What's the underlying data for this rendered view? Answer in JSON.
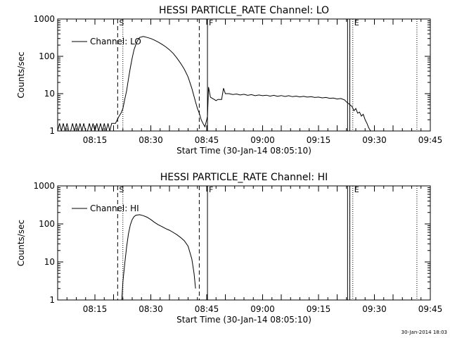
{
  "chart_data": [
    {
      "type": "line",
      "title": "HESSI PARTICLE_RATE Channel: LO",
      "xlabel": "Start Time (30-Jan-14 08:05:10)",
      "ylabel": "Counts/sec",
      "y_scale": "log",
      "ylim": [
        1,
        1000
      ],
      "xlim_minutes": [
        0,
        100
      ],
      "xticks": [
        {
          "min": 10,
          "label": "08:15"
        },
        {
          "min": 25,
          "label": "08:30"
        },
        {
          "min": 40,
          "label": "08:45"
        },
        {
          "min": 55,
          "label": "09:00"
        },
        {
          "min": 70,
          "label": "09:15"
        },
        {
          "min": 85,
          "label": "09:30"
        },
        {
          "min": 100,
          "label": "09:45"
        }
      ],
      "yticks": [
        {
          "value": 1,
          "label": "1"
        },
        {
          "value": 10,
          "label": "10"
        },
        {
          "value": 100,
          "label": "100"
        },
        {
          "value": 1000,
          "label": "1000"
        }
      ],
      "legend": {
        "label": "Channel: LO",
        "placement": "top-left"
      },
      "markers": [
        {
          "min": 16.1,
          "style": "dashed",
          "label": "S"
        },
        {
          "min": 17.5,
          "style": "dotted",
          "label": ""
        },
        {
          "min": 38.0,
          "style": "dashed",
          "label": ""
        },
        {
          "min": 40.2,
          "style": "solid",
          "label": "F"
        },
        {
          "min": 77.8,
          "style": "solid",
          "label": ""
        },
        {
          "min": 78.4,
          "style": "solid",
          "label": ""
        },
        {
          "min": 79.2,
          "style": "dotted",
          "label": "E"
        },
        {
          "min": 96.4,
          "style": "dotted",
          "label": ""
        }
      ],
      "series": [
        {
          "name": "Channel: LO",
          "points": [
            [
              0,
              1
            ],
            [
              0.5,
              1.6
            ],
            [
              1,
              1
            ],
            [
              1.5,
              1.6
            ],
            [
              2,
              1
            ],
            [
              2.5,
              1.6
            ],
            [
              3,
              1
            ],
            [
              3.5,
              1
            ],
            [
              4,
              1.6
            ],
            [
              4.5,
              1
            ],
            [
              5,
              1.6
            ],
            [
              5.5,
              1
            ],
            [
              6,
              1.6
            ],
            [
              6.5,
              1
            ],
            [
              7,
              1.6
            ],
            [
              7.5,
              1
            ],
            [
              8,
              1
            ],
            [
              8.5,
              1.6
            ],
            [
              9,
              1
            ],
            [
              9.5,
              1.6
            ],
            [
              10,
              1
            ],
            [
              10.5,
              1.6
            ],
            [
              11,
              1
            ],
            [
              11.5,
              1.6
            ],
            [
              12,
              1
            ],
            [
              12.5,
              1.6
            ],
            [
              13,
              1
            ],
            [
              13.5,
              1.6
            ],
            [
              14,
              1
            ],
            [
              14.5,
              1.6
            ],
            [
              15,
              1.6
            ],
            [
              15.5,
              1.6
            ],
            [
              16,
              2
            ],
            [
              16.5,
              2.5
            ],
            [
              17,
              3
            ],
            [
              17.5,
              4
            ],
            [
              18,
              7
            ],
            [
              18.5,
              12
            ],
            [
              19,
              25
            ],
            [
              19.5,
              50
            ],
            [
              20,
              90
            ],
            [
              20.5,
              150
            ],
            [
              21,
              210
            ],
            [
              21.5,
              270
            ],
            [
              22,
              320
            ],
            [
              23,
              340
            ],
            [
              24,
              320
            ],
            [
              25,
              300
            ],
            [
              26,
              270
            ],
            [
              27,
              240
            ],
            [
              28,
              210
            ],
            [
              29,
              180
            ],
            [
              30,
              150
            ],
            [
              31,
              120
            ],
            [
              32,
              90
            ],
            [
              33,
              65
            ],
            [
              34,
              45
            ],
            [
              35,
              28
            ],
            [
              36,
              14
            ],
            [
              37,
              6
            ],
            [
              37.5,
              4
            ],
            [
              38,
              3
            ],
            [
              38.5,
              2
            ],
            [
              39,
              1.6
            ],
            [
              39.5,
              1.3
            ],
            [
              40,
              2
            ],
            [
              40.2,
              2.5
            ],
            [
              40.5,
              15
            ],
            [
              41,
              8
            ],
            [
              42,
              7
            ],
            [
              42.5,
              6.5
            ],
            [
              43,
              7
            ],
            [
              44,
              7
            ],
            [
              44.5,
              14
            ],
            [
              45,
              10
            ],
            [
              46,
              10
            ],
            [
              47,
              9.5
            ],
            [
              48,
              9.8
            ],
            [
              49,
              9.2
            ],
            [
              50,
              9.6
            ],
            [
              51,
              9
            ],
            [
              52,
              9.4
            ],
            [
              53,
              8.8
            ],
            [
              54,
              9.2
            ],
            [
              55,
              8.8
            ],
            [
              56,
              9.1
            ],
            [
              57,
              8.6
            ],
            [
              58,
              9
            ],
            [
              59,
              8.5
            ],
            [
              60,
              8.9
            ],
            [
              61,
              8.4
            ],
            [
              62,
              8.8
            ],
            [
              63,
              8.3
            ],
            [
              64,
              8.6
            ],
            [
              65,
              8.2
            ],
            [
              66,
              8.5
            ],
            [
              67,
              8.1
            ],
            [
              68,
              8.3
            ],
            [
              69,
              7.9
            ],
            [
              70,
              8.1
            ],
            [
              71,
              7.7
            ],
            [
              72,
              7.9
            ],
            [
              73,
              7.5
            ],
            [
              74,
              7.6
            ],
            [
              75,
              7.2
            ],
            [
              76,
              7.4
            ],
            [
              77,
              6.8
            ],
            [
              77.5,
              6
            ],
            [
              78.5,
              5
            ],
            [
              79,
              4.5
            ],
            [
              79.5,
              3.5
            ],
            [
              80,
              4
            ],
            [
              80.5,
              3
            ],
            [
              81,
              3.2
            ],
            [
              81.5,
              2.5
            ],
            [
              82,
              2.8
            ],
            [
              82.5,
              2
            ],
            [
              83,
              1.6
            ],
            [
              83.5,
              1.2
            ],
            [
              84,
              1
            ]
          ]
        }
      ]
    },
    {
      "type": "line",
      "title": "HESSI PARTICLE_RATE Channel: HI",
      "xlabel": "Start Time (30-Jan-14 08:05:10)",
      "ylabel": "Counts/sec",
      "y_scale": "log",
      "ylim": [
        1,
        1000
      ],
      "xlim_minutes": [
        0,
        100
      ],
      "xticks": [
        {
          "min": 10,
          "label": "08:15"
        },
        {
          "min": 25,
          "label": "08:30"
        },
        {
          "min": 40,
          "label": "08:45"
        },
        {
          "min": 55,
          "label": "09:00"
        },
        {
          "min": 70,
          "label": "09:15"
        },
        {
          "min": 85,
          "label": "09:30"
        },
        {
          "min": 100,
          "label": "09:45"
        }
      ],
      "yticks": [
        {
          "value": 1,
          "label": "1"
        },
        {
          "value": 10,
          "label": "10"
        },
        {
          "value": 100,
          "label": "100"
        },
        {
          "value": 1000,
          "label": "1000"
        }
      ],
      "legend": {
        "label": "Channel: HI",
        "placement": "top-left"
      },
      "markers": [
        {
          "min": 16.1,
          "style": "dashed",
          "label": "S"
        },
        {
          "min": 17.5,
          "style": "dotted",
          "label": ""
        },
        {
          "min": 38.0,
          "style": "dashed",
          "label": ""
        },
        {
          "min": 40.2,
          "style": "solid",
          "label": "F"
        },
        {
          "min": 77.8,
          "style": "solid",
          "label": ""
        },
        {
          "min": 78.4,
          "style": "solid",
          "label": ""
        },
        {
          "min": 79.2,
          "style": "dotted",
          "label": "E"
        },
        {
          "min": 96.4,
          "style": "dotted",
          "label": ""
        }
      ],
      "series": [
        {
          "name": "Channel: HI",
          "points": [
            [
              17.2,
              1
            ],
            [
              17.5,
              3
            ],
            [
              18,
              9
            ],
            [
              18.5,
              25
            ],
            [
              19,
              55
            ],
            [
              19.5,
              95
            ],
            [
              20,
              130
            ],
            [
              20.5,
              155
            ],
            [
              21,
              170
            ],
            [
              22,
              175
            ],
            [
              23,
              165
            ],
            [
              24,
              150
            ],
            [
              25,
              130
            ],
            [
              26,
              110
            ],
            [
              27,
              95
            ],
            [
              28,
              85
            ],
            [
              29,
              75
            ],
            [
              30,
              68
            ],
            [
              31,
              60
            ],
            [
              32,
              52
            ],
            [
              33,
              44
            ],
            [
              34,
              36
            ],
            [
              35,
              26
            ],
            [
              36,
              12
            ],
            [
              36.6,
              5
            ],
            [
              37,
              2
            ]
          ]
        }
      ]
    }
  ],
  "footer": {
    "timestamp": "30-Jan-2014 18:03"
  }
}
